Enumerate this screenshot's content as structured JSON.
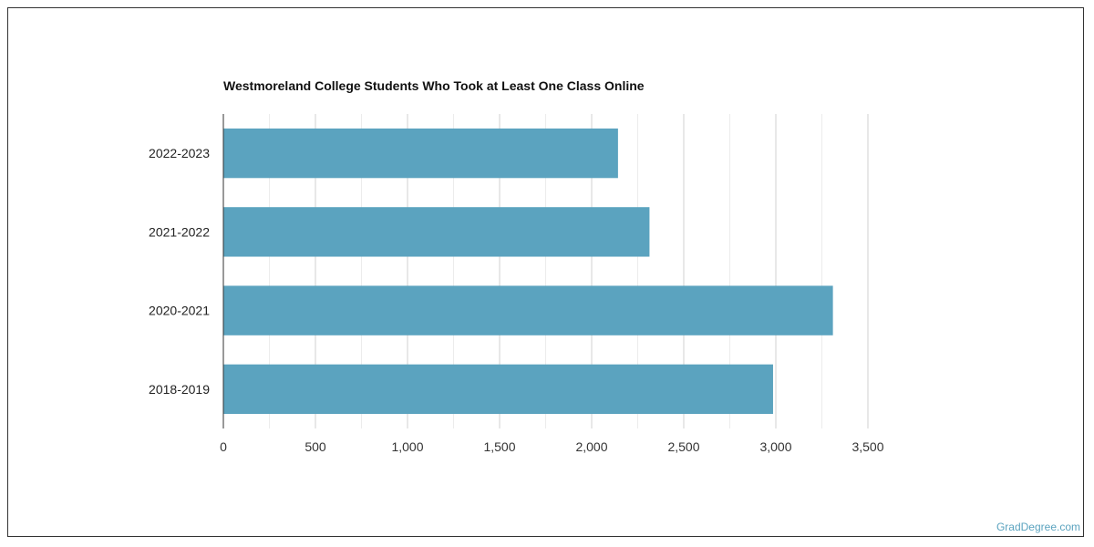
{
  "chart_data": {
    "type": "bar",
    "orientation": "horizontal",
    "title": "Westmoreland College Students Who Took at Least One Class Online",
    "xlabel": "",
    "ylabel": "",
    "categories": [
      "2022-2023",
      "2021-2022",
      "2020-2021",
      "2018-2019"
    ],
    "values": [
      2143,
      2314,
      3310,
      2985
    ],
    "xlim": [
      0,
      3500
    ],
    "xticks": [
      0,
      500,
      1000,
      1500,
      2000,
      2500,
      3000,
      3500
    ],
    "xtick_labels": [
      "0",
      "500",
      "1,000",
      "1,500",
      "2,000",
      "2,500",
      "3,000",
      "3,500"
    ],
    "grid": true,
    "bar_color": "#5ba3bf"
  },
  "watermark": "GradDegree.com"
}
